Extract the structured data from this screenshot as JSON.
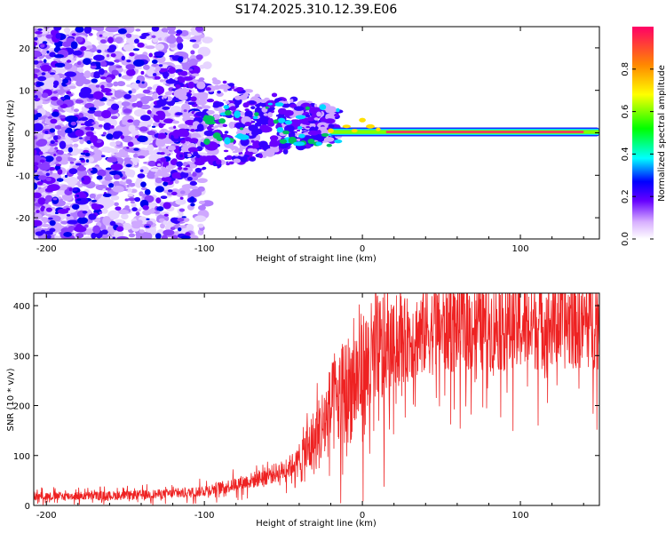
{
  "title": "S174.2025.310.12.39.E06",
  "chart_data": [
    {
      "type": "heatmap",
      "xlabel": "Height of straight line (km)",
      "ylabel": "Frequency (Hz)",
      "xlim": [
        -208,
        150
      ],
      "ylim": [
        -25,
        25
      ],
      "xticks": [
        -200,
        -100,
        0,
        100
      ],
      "yticks": [
        -20,
        -10,
        0,
        10,
        20
      ],
      "colorbar": {
        "label": "Normalized spectral amplitude",
        "range": [
          0,
          1
        ],
        "ticks": [
          0.0,
          0.2,
          0.4,
          0.6,
          0.8
        ]
      },
      "ridge": {
        "description": "strong narrow band near 0 Hz for heights above about -20 km",
        "freq_hz": 0.2,
        "from_km": -20,
        "to_km": 150
      }
    },
    {
      "type": "line",
      "xlabel": "Height of straight line (km)",
      "ylabel": "SNR (10 * v/v)",
      "xlim": [
        -208,
        150
      ],
      "ylim": [
        0,
        425
      ],
      "xticks": [
        -200,
        -100,
        0,
        100
      ],
      "yticks": [
        0,
        100,
        200,
        300,
        400
      ],
      "series": [
        {
          "name": "SNR",
          "color": "#ee2222",
          "trend_x": [
            -208,
            -150,
            -110,
            -90,
            -70,
            -50,
            -40,
            -30,
            -20,
            -10,
            0,
            10,
            20,
            40,
            60,
            80,
            100,
            120,
            150
          ],
          "trend_y": [
            18,
            20,
            25,
            35,
            50,
            70,
            90,
            130,
            190,
            230,
            265,
            290,
            320,
            350,
            355,
            360,
            360,
            365,
            365
          ]
        }
      ]
    }
  ],
  "colors": {
    "line": "#ee2222",
    "axis": "#000000"
  }
}
